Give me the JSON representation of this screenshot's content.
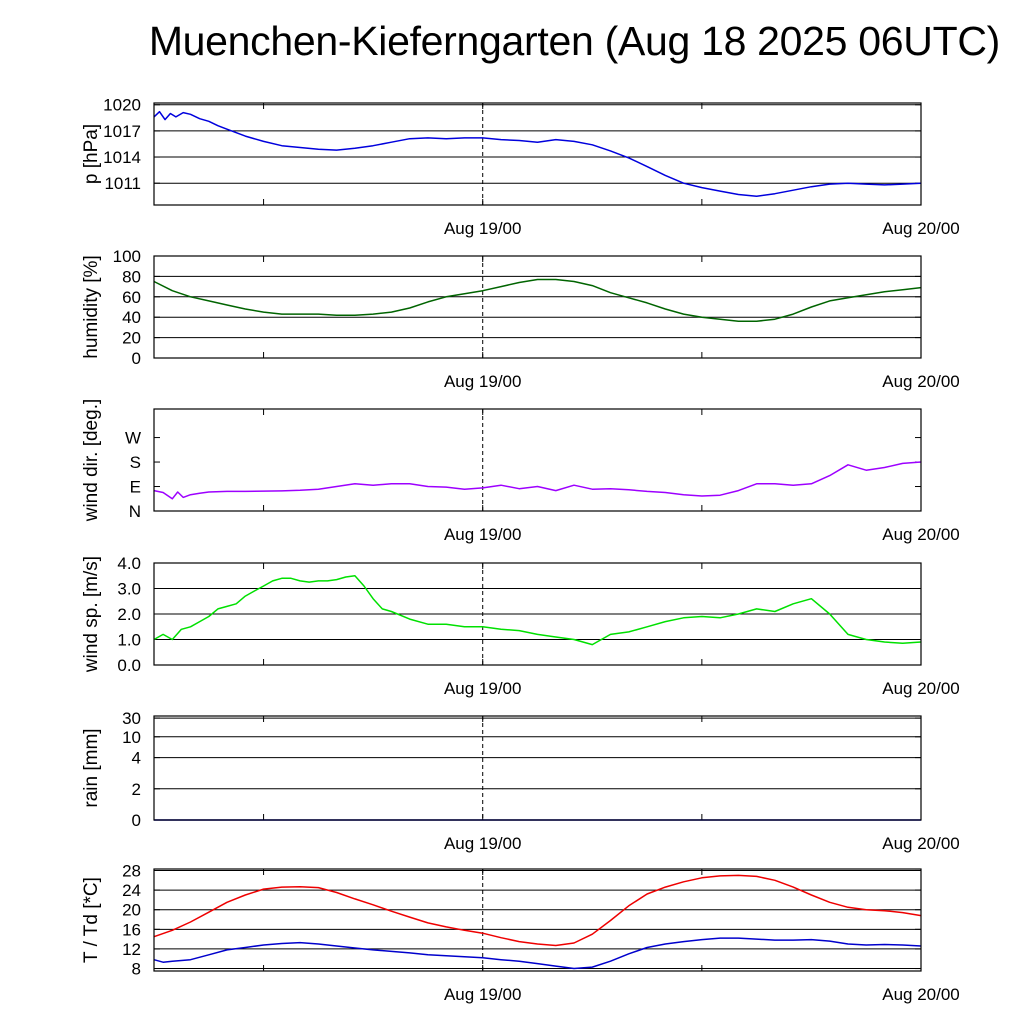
{
  "title": "Muenchen-Kieferngarten (Aug 18 2025 06UTC)",
  "time_axis": {
    "start_hours": 0,
    "end_hours": 42,
    "tick_hours": [
      6,
      18,
      30
    ],
    "labels": [
      {
        "text": "Aug 19/00",
        "hours": 18
      },
      {
        "text": "Aug 20/00",
        "hours": 42
      }
    ],
    "dashed_marker_hours": 18
  },
  "colors": {
    "pressure": "#0000dd",
    "humidity": "#006400",
    "wind_dir": "#9d00ff",
    "wind_speed": "#00e000",
    "temperature": "#ee0000",
    "dewpoint": "#0000cc",
    "grid": "#000000"
  },
  "chart_data": [
    {
      "type": "line",
      "ylabel": "p [hPa]",
      "ylim": [
        1008.5,
        1020.2
      ],
      "yticks": [
        {
          "v": 1011,
          "label": "1011"
        },
        {
          "v": 1014,
          "label": "1014"
        },
        {
          "v": 1017,
          "label": "1017"
        },
        {
          "v": 1020,
          "label": "1020"
        }
      ],
      "gridlines": [
        1011,
        1014,
        1017,
        1020
      ],
      "series": [
        {
          "name": "pressure",
          "color_key": "pressure",
          "x": [
            0,
            0.3,
            0.6,
            0.9,
            1.2,
            1.6,
            2.0,
            2.5,
            3.0,
            3.5,
            4.0,
            5.0,
            6.0,
            7.0,
            8.0,
            9.0,
            10.0,
            11.0,
            12.0,
            13.0,
            14.0,
            15.0,
            16.0,
            17.0,
            18.0,
            19.0,
            20.0,
            21.0,
            22.0,
            23.0,
            24.0,
            25.0,
            26.0,
            27.0,
            28.0,
            29.0,
            30.0,
            31.0,
            32.0,
            33.0,
            34.0,
            35.0,
            36.0,
            37.0,
            38.0,
            39.0,
            40.0,
            41.0,
            42.0
          ],
          "values": [
            1018.6,
            1019.2,
            1018.3,
            1019.0,
            1018.6,
            1019.1,
            1018.9,
            1018.4,
            1018.1,
            1017.6,
            1017.2,
            1016.4,
            1015.8,
            1015.3,
            1015.1,
            1014.9,
            1014.8,
            1015.0,
            1015.3,
            1015.7,
            1016.1,
            1016.2,
            1016.1,
            1016.2,
            1016.2,
            1016.0,
            1015.9,
            1015.7,
            1016.0,
            1015.8,
            1015.4,
            1014.7,
            1013.9,
            1012.9,
            1011.9,
            1011.0,
            1010.5,
            1010.1,
            1009.7,
            1009.5,
            1009.8,
            1010.2,
            1010.6,
            1010.9,
            1011.0,
            1010.9,
            1010.8,
            1010.9,
            1011.0
          ]
        }
      ]
    },
    {
      "type": "line",
      "ylabel": "humidity [%]",
      "ylim": [
        0,
        100
      ],
      "yticks": [
        {
          "v": 0,
          "label": "0"
        },
        {
          "v": 20,
          "label": "20"
        },
        {
          "v": 40,
          "label": "40"
        },
        {
          "v": 60,
          "label": "60"
        },
        {
          "v": 80,
          "label": "80"
        },
        {
          "v": 100,
          "label": "100"
        }
      ],
      "gridlines": [
        20,
        40,
        60,
        80
      ],
      "series": [
        {
          "name": "humidity",
          "color_key": "humidity",
          "x": [
            0,
            1,
            2,
            3,
            4,
            5,
            6,
            7,
            8,
            9,
            10,
            11,
            12,
            13,
            14,
            15,
            16,
            17,
            18,
            19,
            20,
            21,
            22,
            23,
            24,
            25,
            26,
            27,
            28,
            29,
            30,
            31,
            32,
            33,
            34,
            35,
            36,
            37,
            38,
            39,
            40,
            41,
            42
          ],
          "values": [
            75,
            66,
            60,
            56,
            52,
            48,
            45,
            43,
            43,
            43,
            42,
            42,
            43,
            45,
            49,
            55,
            60,
            63,
            66,
            70,
            74,
            77,
            77,
            75,
            71,
            64,
            59,
            54,
            48,
            43,
            40,
            38,
            36,
            36,
            38,
            43,
            50,
            56,
            59,
            62,
            65,
            67,
            69
          ]
        }
      ]
    },
    {
      "type": "line",
      "ylabel": "wind dir. [deg.]",
      "ylim": [
        0,
        375
      ],
      "yticks": [
        {
          "v": 0,
          "label": "N"
        },
        {
          "v": 90,
          "label": "E"
        },
        {
          "v": 180,
          "label": "S"
        },
        {
          "v": 270,
          "label": "W"
        }
      ],
      "gridlines": [],
      "series": [
        {
          "name": "wind direction",
          "color_key": "wind_dir",
          "x": [
            0,
            0.5,
            1.0,
            1.3,
            1.6,
            2.0,
            2.5,
            3.0,
            4.0,
            5.0,
            6.0,
            7.0,
            8.0,
            9.0,
            10.0,
            11.0,
            12.0,
            13.0,
            14.0,
            15.0,
            16.0,
            17.0,
            18.0,
            19.0,
            20.0,
            21.0,
            22.0,
            23.0,
            24.0,
            25.0,
            26.0,
            27.0,
            28.0,
            29.0,
            30.0,
            31.0,
            32.0,
            33.0,
            34.0,
            35.0,
            36.0,
            37.0,
            38.0,
            39.0,
            40.0,
            41.0,
            42.0
          ],
          "values": [
            75,
            68,
            45,
            70,
            50,
            60,
            65,
            70,
            72,
            72,
            73,
            74,
            76,
            80,
            90,
            100,
            95,
            100,
            100,
            90,
            88,
            80,
            85,
            95,
            82,
            90,
            75,
            95,
            80,
            82,
            78,
            72,
            68,
            60,
            55,
            58,
            75,
            100,
            100,
            95,
            100,
            130,
            170,
            150,
            160,
            175,
            180
          ]
        }
      ]
    },
    {
      "type": "line",
      "ylabel": "wind sp. [m/s]",
      "ylim": [
        0,
        4.0
      ],
      "yticks": [
        {
          "v": 0,
          "label": "0.0"
        },
        {
          "v": 1,
          "label": "1.0"
        },
        {
          "v": 2,
          "label": "2.0"
        },
        {
          "v": 3,
          "label": "3.0"
        },
        {
          "v": 4,
          "label": "4.0"
        }
      ],
      "gridlines": [
        1,
        2,
        3
      ],
      "series": [
        {
          "name": "wind speed",
          "color_key": "wind_speed",
          "x": [
            0,
            0.5,
            1.0,
            1.5,
            2.0,
            2.5,
            3.0,
            3.5,
            4.0,
            4.5,
            5.0,
            5.5,
            6.0,
            6.5,
            7.0,
            7.5,
            8.0,
            8.5,
            9.0,
            9.5,
            10.0,
            10.5,
            11.0,
            11.5,
            12.0,
            12.5,
            13.0,
            14.0,
            15.0,
            16.0,
            17.0,
            18.0,
            19.0,
            20.0,
            21.0,
            22.0,
            23.0,
            24.0,
            25.0,
            26.0,
            27.0,
            28.0,
            29.0,
            30.0,
            31.0,
            32.0,
            33.0,
            34.0,
            35.0,
            36.0,
            37.0,
            38.0,
            39.0,
            40.0,
            41.0,
            42.0
          ],
          "values": [
            1.0,
            1.2,
            1.0,
            1.4,
            1.5,
            1.7,
            1.9,
            2.2,
            2.3,
            2.4,
            2.7,
            2.9,
            3.1,
            3.3,
            3.4,
            3.4,
            3.3,
            3.25,
            3.3,
            3.3,
            3.35,
            3.45,
            3.5,
            3.1,
            2.6,
            2.2,
            2.1,
            1.8,
            1.6,
            1.6,
            1.5,
            1.5,
            1.4,
            1.35,
            1.2,
            1.1,
            1.0,
            0.8,
            1.2,
            1.3,
            1.5,
            1.7,
            1.85,
            1.9,
            1.85,
            2.0,
            2.2,
            2.1,
            2.4,
            2.6,
            2.0,
            1.2,
            1.0,
            0.9,
            0.85,
            0.9
          ]
        }
      ]
    },
    {
      "type": "line",
      "ylabel": "rain [mm]",
      "ylim": [
        0,
        32
      ],
      "yticks": [
        {
          "v": 0,
          "label": "0"
        },
        {
          "v": 2,
          "label": "2"
        },
        {
          "v": 4,
          "label": "4"
        },
        {
          "v": 10,
          "label": "10"
        },
        {
          "v": 30,
          "label": "30"
        }
      ],
      "ytick_positions": [
        0,
        0.3,
        0.6,
        0.8,
        0.98
      ],
      "gridlines_positions": [
        0.3,
        0.6,
        0.8,
        0.98
      ],
      "series": [
        {
          "name": "rain",
          "color_key": "dewpoint",
          "x": [
            0,
            42
          ],
          "values": [
            0,
            0
          ]
        }
      ]
    },
    {
      "type": "line",
      "ylabel": "T / Td [*C]",
      "ylim": [
        7.5,
        28.3
      ],
      "yticks": [
        {
          "v": 8,
          "label": "8"
        },
        {
          "v": 12,
          "label": "12"
        },
        {
          "v": 16,
          "label": "16"
        },
        {
          "v": 20,
          "label": "20"
        },
        {
          "v": 24,
          "label": "24"
        },
        {
          "v": 28,
          "label": "28"
        }
      ],
      "gridlines": [
        8,
        12,
        16,
        20,
        24,
        28
      ],
      "series": [
        {
          "name": "temperature",
          "color_key": "temperature",
          "x": [
            0,
            1,
            2,
            3,
            4,
            5,
            6,
            7,
            8,
            9,
            10,
            11,
            12,
            13,
            14,
            15,
            16,
            17,
            18,
            19,
            20,
            21,
            22,
            23,
            24,
            25,
            26,
            27,
            28,
            29,
            30,
            31,
            32,
            33,
            34,
            35,
            36,
            37,
            38,
            39,
            40,
            41,
            42
          ],
          "values": [
            14.5,
            15.8,
            17.5,
            19.5,
            21.5,
            23.0,
            24.2,
            24.6,
            24.7,
            24.5,
            23.5,
            22.2,
            21.0,
            19.7,
            18.5,
            17.3,
            16.5,
            15.8,
            15.2,
            14.3,
            13.5,
            13.0,
            12.7,
            13.2,
            15.0,
            17.8,
            20.8,
            23.2,
            24.6,
            25.7,
            26.5,
            26.9,
            27.0,
            26.8,
            26.0,
            24.6,
            23.0,
            21.5,
            20.5,
            20.0,
            19.8,
            19.4,
            18.8
          ]
        },
        {
          "name": "dewpoint",
          "color_key": "dewpoint",
          "x": [
            0,
            0.5,
            1.0,
            2.0,
            3.0,
            4.0,
            5.0,
            6.0,
            7.0,
            8.0,
            9.0,
            10.0,
            11.0,
            12.0,
            13.0,
            14.0,
            15.0,
            16.0,
            17.0,
            18.0,
            19.0,
            20.0,
            21.0,
            22.0,
            23.0,
            24.0,
            25.0,
            26.0,
            27.0,
            28.0,
            29.0,
            30.0,
            31.0,
            32.0,
            33.0,
            34.0,
            35.0,
            36.0,
            37.0,
            38.0,
            39.0,
            40.0,
            41.0,
            42.0
          ],
          "values": [
            9.8,
            9.3,
            9.5,
            9.8,
            10.8,
            11.8,
            12.3,
            12.8,
            13.1,
            13.3,
            13.0,
            12.6,
            12.2,
            11.8,
            11.5,
            11.2,
            10.8,
            10.6,
            10.4,
            10.2,
            9.8,
            9.5,
            9.0,
            8.5,
            8.0,
            8.3,
            9.5,
            11.0,
            12.3,
            13.0,
            13.5,
            13.9,
            14.2,
            14.2,
            14.0,
            13.8,
            13.8,
            13.9,
            13.6,
            13.0,
            12.8,
            12.9,
            12.8,
            12.6
          ]
        }
      ]
    }
  ]
}
